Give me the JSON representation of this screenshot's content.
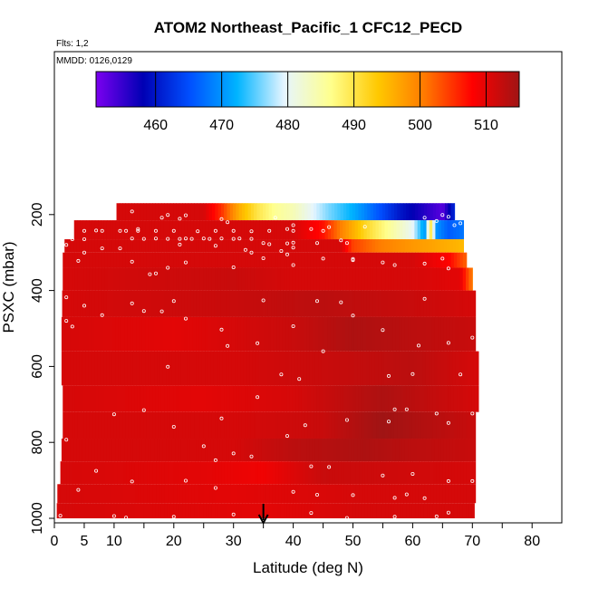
{
  "chart_data": {
    "type": "heatmap",
    "title": "ATOM2 Northeast_Pacific_1 CFC12_PECD",
    "flights_note": "Flts: 1,2",
    "date_note": "MMDD: 0126,0129",
    "xlabel": "Latitude (deg N)",
    "ylabel": "PSXC (mbar)",
    "xlim": [
      0,
      85
    ],
    "ylim": [
      1000,
      0
    ],
    "x_ticks": [
      0,
      5,
      10,
      20,
      30,
      40,
      50,
      60,
      70,
      80
    ],
    "y_ticks": [
      200,
      400,
      600,
      800,
      1000
    ],
    "colorbar": {
      "range": [
        451,
        515
      ],
      "ticks": [
        460,
        470,
        480,
        490,
        500,
        510
      ],
      "colors": [
        "#7b00f0",
        "#0000b4",
        "#0050ff",
        "#00b4ff",
        "#e6f5ff",
        "#ffff8c",
        "#ffc800",
        "#ff7800",
        "#ff0000",
        "#a01414"
      ]
    },
    "marker_latitude": 35,
    "grid": false,
    "bands": [
      {
        "p_top": 170,
        "p_bot": 215,
        "x_start": 10.4,
        "x_end": 67,
        "values": [
          [
            10.4,
            511
          ],
          [
            25,
            511
          ],
          [
            28,
            505
          ],
          [
            31,
            496
          ],
          [
            34,
            490
          ],
          [
            37,
            486
          ],
          [
            40,
            484
          ],
          [
            43,
            480
          ],
          [
            46,
            476
          ],
          [
            50,
            472
          ],
          [
            54,
            466
          ],
          [
            58,
            460
          ],
          [
            62,
            456
          ],
          [
            65,
            453
          ],
          [
            67,
            462
          ]
        ]
      },
      {
        "p_top": 215,
        "p_bot": 265,
        "x_start": 3.3,
        "x_end": 68.5,
        "values": [
          [
            3.3,
            511
          ],
          [
            40,
            511
          ],
          [
            45,
            507
          ],
          [
            48,
            500
          ],
          [
            52,
            492
          ],
          [
            56,
            486
          ],
          [
            60,
            480
          ],
          [
            62,
            470
          ],
          [
            63,
            490
          ],
          [
            64,
            470
          ],
          [
            66,
            466
          ],
          [
            68.5,
            468
          ]
        ]
      },
      {
        "p_top": 265,
        "p_bot": 300,
        "x_start": 1.7,
        "x_end": 68.5,
        "values": [
          [
            1.7,
            511
          ],
          [
            48,
            511
          ],
          [
            50,
            504
          ],
          [
            55,
            500
          ],
          [
            60,
            498
          ],
          [
            66,
            496
          ],
          [
            68.5,
            495
          ]
        ]
      },
      {
        "p_top": 300,
        "p_bot": 340,
        "x_start": 1.4,
        "x_end": 69,
        "values": [
          [
            1.4,
            511
          ],
          [
            60,
            511
          ],
          [
            66,
            508
          ],
          [
            69,
            502
          ]
        ]
      },
      {
        "p_top": 340,
        "p_bot": 400,
        "x_start": 1.4,
        "x_end": 70,
        "values": [
          [
            1.4,
            511
          ],
          [
            30,
            512
          ],
          [
            40,
            511
          ],
          [
            60,
            511
          ],
          [
            68,
            510
          ],
          [
            70,
            500
          ]
        ]
      },
      {
        "p_top": 400,
        "p_bot": 470,
        "x_start": 1.3,
        "x_end": 70.5,
        "values": [
          [
            1.3,
            511
          ],
          [
            30,
            512
          ],
          [
            45,
            513
          ],
          [
            60,
            512
          ],
          [
            70.5,
            511
          ]
        ]
      },
      {
        "p_top": 470,
        "p_bot": 560,
        "x_start": 1.2,
        "x_end": 70.5,
        "values": [
          [
            1.2,
            511
          ],
          [
            20,
            510
          ],
          [
            40,
            512
          ],
          [
            50,
            514
          ],
          [
            60,
            513
          ],
          [
            70.5,
            512
          ]
        ]
      },
      {
        "p_top": 560,
        "p_bot": 650,
        "x_start": 1.2,
        "x_end": 71,
        "values": [
          [
            1.2,
            511
          ],
          [
            30,
            511
          ],
          [
            45,
            512
          ],
          [
            60,
            513
          ],
          [
            71,
            511
          ]
        ]
      },
      {
        "p_top": 650,
        "p_bot": 720,
        "x_start": 1.4,
        "x_end": 71,
        "values": [
          [
            1.4,
            511
          ],
          [
            25,
            510
          ],
          [
            40,
            511
          ],
          [
            55,
            514
          ],
          [
            71,
            511
          ]
        ]
      },
      {
        "p_top": 720,
        "p_bot": 790,
        "x_start": 1.4,
        "x_end": 70.5,
        "values": [
          [
            1.4,
            511
          ],
          [
            30,
            511
          ],
          [
            45,
            512
          ],
          [
            55,
            515
          ],
          [
            60,
            514
          ],
          [
            70.5,
            512
          ]
        ]
      },
      {
        "p_top": 790,
        "p_bot": 850,
        "x_start": 1.2,
        "x_end": 70.5,
        "values": [
          [
            1.2,
            511
          ],
          [
            30,
            511
          ],
          [
            40,
            513
          ],
          [
            52,
            514
          ],
          [
            60,
            513
          ],
          [
            70.5,
            512
          ]
        ]
      },
      {
        "p_top": 850,
        "p_bot": 910,
        "x_start": 1.0,
        "x_end": 70.5,
        "values": [
          [
            1.0,
            511
          ],
          [
            25,
            510
          ],
          [
            35,
            509
          ],
          [
            45,
            512
          ],
          [
            70.5,
            511
          ]
        ]
      },
      {
        "p_top": 910,
        "p_bot": 960,
        "x_start": 0.5,
        "x_end": 70.5,
        "values": [
          [
            0.5,
            511
          ],
          [
            30,
            510
          ],
          [
            50,
            511
          ],
          [
            70.5,
            511
          ]
        ]
      },
      {
        "p_top": 960,
        "p_bot": 1000,
        "x_start": 0.4,
        "x_end": 70.3,
        "values": [
          [
            0.4,
            511
          ],
          [
            35,
            510
          ],
          [
            50,
            511
          ],
          [
            70.3,
            511
          ]
        ]
      }
    ],
    "sample_points": [
      [
        13,
        192
      ],
      [
        14,
        238
      ],
      [
        18,
        208
      ],
      [
        19,
        201
      ],
      [
        21,
        211
      ],
      [
        22,
        202
      ],
      [
        28,
        212
      ],
      [
        29,
        220
      ],
      [
        37,
        208
      ],
      [
        39,
        238
      ],
      [
        40,
        228
      ],
      [
        43,
        238
      ],
      [
        46,
        233
      ],
      [
        52,
        232
      ],
      [
        62,
        208
      ],
      [
        64,
        217
      ],
      [
        65,
        201
      ],
      [
        66,
        206
      ],
      [
        67,
        228
      ],
      [
        68,
        223
      ],
      [
        5,
        243
      ],
      [
        7,
        242
      ],
      [
        8,
        243
      ],
      [
        11,
        243
      ],
      [
        12,
        243
      ],
      [
        14,
        243
      ],
      [
        17,
        243
      ],
      [
        20,
        243
      ],
      [
        24,
        244
      ],
      [
        27,
        243
      ],
      [
        30,
        243
      ],
      [
        33,
        244
      ],
      [
        36,
        243
      ],
      [
        40,
        243
      ],
      [
        45,
        243
      ],
      [
        3,
        265
      ],
      [
        5,
        265
      ],
      [
        13,
        263
      ],
      [
        15,
        264
      ],
      [
        17,
        263
      ],
      [
        19,
        264
      ],
      [
        21,
        264
      ],
      [
        22,
        263
      ],
      [
        23,
        264
      ],
      [
        25,
        263
      ],
      [
        26,
        264
      ],
      [
        28,
        263
      ],
      [
        30,
        264
      ],
      [
        31,
        263
      ],
      [
        33,
        264
      ],
      [
        35,
        275
      ],
      [
        36,
        278
      ],
      [
        39,
        276
      ],
      [
        40,
        274
      ],
      [
        44,
        275
      ],
      [
        48,
        268
      ],
      [
        49,
        275
      ],
      [
        2,
        280
      ],
      [
        5,
        300
      ],
      [
        8,
        289
      ],
      [
        11,
        289
      ],
      [
        21,
        279
      ],
      [
        27,
        282
      ],
      [
        32,
        293
      ],
      [
        33,
        300
      ],
      [
        38,
        296
      ],
      [
        39,
        305
      ],
      [
        40,
        287
      ],
      [
        45,
        316
      ],
      [
        50,
        317
      ],
      [
        55,
        326
      ],
      [
        62,
        329
      ],
      [
        65,
        316
      ],
      [
        4,
        322
      ],
      [
        13,
        324
      ],
      [
        16,
        357
      ],
      [
        17,
        355
      ],
      [
        19,
        340
      ],
      [
        22,
        326
      ],
      [
        30,
        339
      ],
      [
        35,
        315
      ],
      [
        40,
        333
      ],
      [
        50,
        320
      ],
      [
        57,
        333
      ],
      [
        66,
        342
      ],
      [
        2,
        418
      ],
      [
        5,
        440
      ],
      [
        8,
        465
      ],
      [
        13,
        434
      ],
      [
        15,
        454
      ],
      [
        18,
        455
      ],
      [
        20,
        428
      ],
      [
        35,
        426
      ],
      [
        44,
        428
      ],
      [
        48,
        431
      ],
      [
        62,
        422
      ],
      [
        2,
        480
      ],
      [
        3,
        495
      ],
      [
        22,
        474
      ],
      [
        28,
        503
      ],
      [
        29,
        546
      ],
      [
        34,
        539
      ],
      [
        40,
        494
      ],
      [
        50,
        466
      ],
      [
        55,
        504
      ],
      [
        61,
        545
      ],
      [
        66,
        538
      ],
      [
        70,
        524
      ],
      [
        19,
        601
      ],
      [
        34,
        681
      ],
      [
        38,
        621
      ],
      [
        41,
        633
      ],
      [
        45,
        560
      ],
      [
        56,
        625
      ],
      [
        60,
        620
      ],
      [
        68,
        621
      ],
      [
        10,
        726
      ],
      [
        15,
        715
      ],
      [
        20,
        759
      ],
      [
        28,
        737
      ],
      [
        39,
        783
      ],
      [
        42,
        755
      ],
      [
        49,
        741
      ],
      [
        56,
        745
      ],
      [
        57,
        713
      ],
      [
        59,
        713
      ],
      [
        64,
        724
      ],
      [
        66,
        749
      ],
      [
        70,
        724
      ],
      [
        1,
        775
      ],
      [
        2,
        793
      ],
      [
        25,
        810
      ],
      [
        27,
        847
      ],
      [
        30,
        829
      ],
      [
        33,
        837
      ],
      [
        43,
        863
      ],
      [
        46,
        865
      ],
      [
        55,
        887
      ],
      [
        60,
        883
      ],
      [
        66,
        902
      ],
      [
        70,
        902
      ],
      [
        4,
        925
      ],
      [
        7,
        875
      ],
      [
        13,
        903
      ],
      [
        22,
        901
      ],
      [
        27,
        920
      ],
      [
        40,
        930
      ],
      [
        44,
        938
      ],
      [
        50,
        939
      ],
      [
        57,
        946
      ],
      [
        59,
        937
      ],
      [
        62,
        947
      ],
      [
        1,
        993
      ],
      [
        10,
        994
      ],
      [
        12,
        998
      ],
      [
        20,
        996
      ],
      [
        30,
        990
      ],
      [
        43,
        986
      ],
      [
        49,
        999
      ],
      [
        57,
        996
      ],
      [
        64,
        995
      ],
      [
        66,
        985
      ]
    ]
  }
}
